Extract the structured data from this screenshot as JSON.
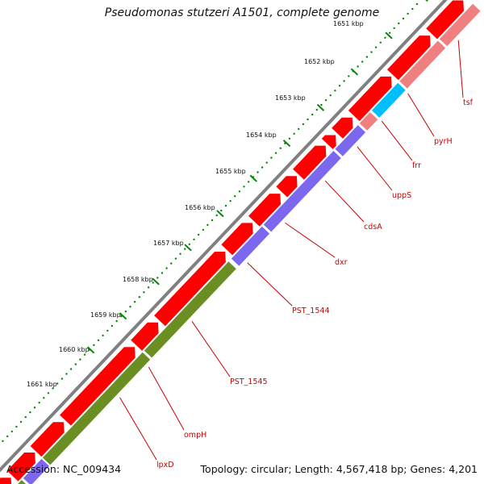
{
  "title": "Pseudomonas stutzeri A1501, complete genome",
  "footer": {
    "accession_label": "Accession:",
    "accession": "NC_009434",
    "topology_label": "Topology:",
    "topology": "circular",
    "length_label": "Length:",
    "length": "4,567,418 bp",
    "genes_label": "Genes:",
    "genes": "4,201"
  },
  "colors": {
    "backbone": "#808080",
    "cds": "#ff0000",
    "tick_dot": "#008800",
    "label": "#cc0000",
    "lime": "#6b8e23",
    "violet": "#7b68ee",
    "cyan": "#00bfff",
    "pink": "#f08080"
  },
  "kbp_ticks": [
    {
      "label": "1651 kbp"
    },
    {
      "label": "1652 kbp"
    },
    {
      "label": "1653 kbp"
    },
    {
      "label": "1654 kbp"
    },
    {
      "label": "1655 kbp"
    },
    {
      "label": "1656 kbp"
    },
    {
      "label": "1657 kbp"
    },
    {
      "label": "1658 kbp"
    },
    {
      "label": "1659 kbp"
    },
    {
      "label": "1660 kbp"
    },
    {
      "label": "1661 kbp"
    }
  ],
  "gene_labels": [
    {
      "name": "tsf"
    },
    {
      "name": "pyrH"
    },
    {
      "name": "frr"
    },
    {
      "name": "uppS"
    },
    {
      "name": "cdsA"
    },
    {
      "name": "dxr"
    },
    {
      "name": "PST_1544"
    },
    {
      "name": "PST_1545"
    },
    {
      "name": "ompH"
    },
    {
      "name": "lpxD"
    }
  ]
}
